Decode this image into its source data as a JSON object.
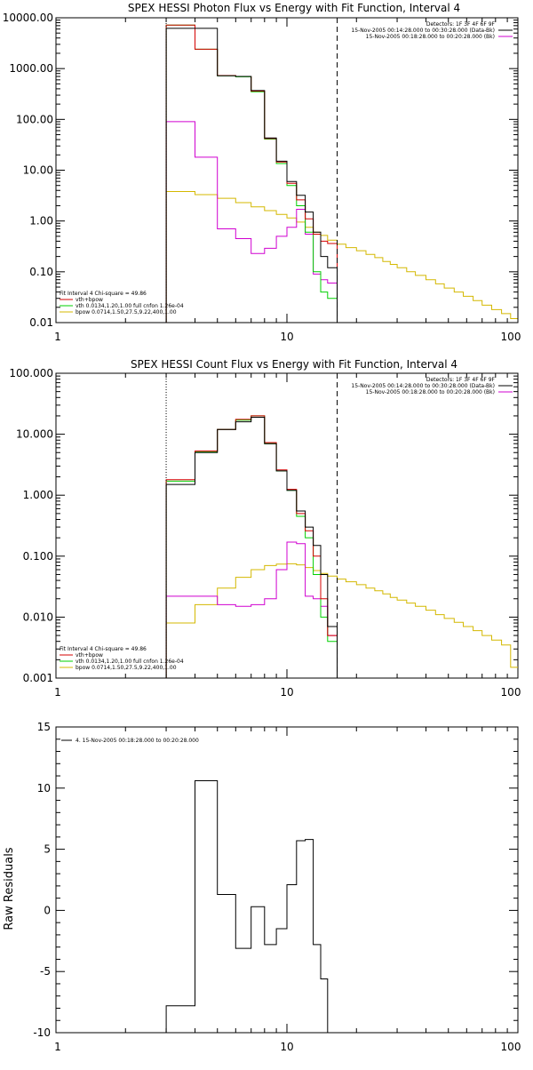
{
  "colors": {
    "data": "#000000",
    "total": "#d40000",
    "vth": "#00d000",
    "bpow": "#d4b800",
    "background": "#d000d0",
    "axis": "#000000"
  },
  "chart_data": [
    {
      "type": "line",
      "scale": "log-log",
      "title": "SPEX HESSI Photon Flux vs Energy with Fit Function, Interval 4",
      "xlim": [
        1,
        100
      ],
      "ylim": [
        0.01,
        10000
      ],
      "x_ticks": [
        "1",
        "10",
        "100"
      ],
      "y_ticks": [
        "0.01",
        "0.10",
        "1.00",
        "10.00",
        "100.00",
        "1000.00",
        "10000.00"
      ],
      "fit_range": [
        3,
        16.5
      ],
      "legend_right": [
        "Detectors: 1F 3F 4F 6F 9F",
        "15-Nov-2005 00:14:28.000 to 00:30:28.000 (Data-Bk)",
        "15-Nov-2005 00:18:28.000 to 00:20:28.000 (Bk)"
      ],
      "legend_left": [
        "Fit Interval 4   Chi-square = 49.86",
        "vth+bpow",
        "vth 0.0134,1.20,1.00  full cnfon 1.26e-04",
        "bpow 0.0714,1.50,27.5,9.22,400,1.00"
      ],
      "series": [
        {
          "key": "data",
          "legend": "15-Nov-2005 00:14:28.000 to 00:30:28.000 (Data-Bk)",
          "edges": [
            3,
            4,
            5,
            6,
            7,
            8,
            9,
            10,
            11,
            12,
            13,
            14,
            15,
            16.5
          ],
          "values": [
            6200,
            6200,
            720,
            700,
            370,
            43,
            15,
            6,
            3.2,
            1.5,
            0.6,
            0.2,
            0.12
          ]
        },
        {
          "key": "total",
          "legend": "vth+bpow",
          "edges": [
            3,
            4,
            5,
            6,
            7,
            8,
            9,
            10,
            11,
            12,
            13,
            14,
            15,
            16.5
          ],
          "values": [
            7200,
            2400,
            730,
            700,
            360,
            42,
            14.5,
            5.5,
            2.6,
            1.1,
            0.55,
            0.4,
            0.36
          ]
        },
        {
          "key": "vth",
          "legend": "vth 0.0134,1.20,1.00  full cnfon 1.26e-04",
          "edges": [
            3,
            4,
            5,
            6,
            7,
            8,
            9,
            10,
            11,
            12,
            13,
            14,
            15,
            16.5
          ],
          "values": [
            7200,
            2400,
            720,
            690,
            350,
            41,
            13.5,
            5,
            2,
            0.6,
            0.1,
            0.04,
            0.03
          ]
        },
        {
          "key": "bpow",
          "legend": "bpow 0.0714,1.50,27.5,9.22,400,1.00",
          "edges": [
            3,
            4,
            5,
            6,
            7,
            8,
            9,
            10,
            11,
            12,
            13,
            14,
            15,
            16.5,
            18,
            20,
            22,
            24,
            26,
            28,
            30,
            33,
            36,
            40,
            44,
            48,
            53,
            58,
            64,
            70,
            77,
            85,
            93,
            100
          ],
          "values": [
            3.8,
            3.3,
            2.8,
            2.3,
            1.9,
            1.6,
            1.35,
            1.15,
            0.95,
            0.75,
            0.6,
            0.52,
            0.42,
            0.35,
            0.3,
            0.26,
            0.22,
            0.19,
            0.16,
            0.14,
            0.12,
            0.1,
            0.085,
            0.07,
            0.058,
            0.048,
            0.04,
            0.033,
            0.027,
            0.022,
            0.018,
            0.015,
            0.012
          ]
        },
        {
          "key": "background",
          "legend": "15-Nov-2005 00:18:28.000 to 00:20:28.000 (Bk)",
          "edges": [
            3,
            4,
            5,
            6,
            7,
            8,
            9,
            10,
            11,
            12,
            13,
            14,
            15,
            16.5
          ],
          "values": [
            90,
            18,
            0.7,
            0.45,
            0.23,
            0.29,
            0.5,
            0.75,
            1.7,
            0.55,
            0.09,
            0.07,
            0.06
          ]
        }
      ]
    },
    {
      "type": "line",
      "scale": "log-log",
      "title": "SPEX HESSI Count Flux vs Energy with Fit Function, Interval 4",
      "xlim": [
        1,
        100
      ],
      "ylim": [
        0.001,
        100
      ],
      "x_ticks": [
        "1",
        "10",
        "100"
      ],
      "y_ticks": [
        "0.001",
        "0.010",
        "0.100",
        "1.000",
        "10.000",
        "100.000"
      ],
      "fit_range": [
        3,
        16.5
      ],
      "legend_right": [
        "Detectors: 1F 3F 4F 6F 9F",
        "15-Nov-2005 00:14:28.000 to 00:30:28.000 (Data-Bk)",
        "15-Nov-2005 00:18:28.000 to 00:20:28.000 (Bk)"
      ],
      "legend_left": [
        "Fit Interval 4   Chi-square = 49.86",
        "vth+bpow",
        "vth 0.0134,1.20,1.00  full cnfon 1.26e-04",
        "bpow 0.0714,1.50,27.5,9.22,400,1.00"
      ],
      "series": [
        {
          "key": "data",
          "legend": "15-Nov-2005 00:14:28.000 to 00:30:28.000 (Data-Bk)",
          "edges": [
            3,
            4,
            5,
            6,
            7,
            8,
            9,
            10,
            11,
            12,
            13,
            14,
            15,
            16.5
          ],
          "values": [
            1.5,
            5,
            12,
            16,
            19,
            7,
            2.5,
            1.2,
            0.55,
            0.3,
            0.15,
            0.05,
            0.007
          ]
        },
        {
          "key": "total",
          "legend": "vth+bpow",
          "edges": [
            3,
            4,
            5,
            6,
            7,
            8,
            9,
            10,
            11,
            12,
            13,
            14,
            15,
            16.5
          ],
          "values": [
            1.8,
            5.3,
            12,
            17.5,
            20,
            7.3,
            2.6,
            1.25,
            0.5,
            0.26,
            0.1,
            0.02,
            0.005
          ]
        },
        {
          "key": "vth",
          "legend": "vth 0.0134,1.20,1.00  full cnfon 1.26e-04",
          "edges": [
            3,
            4,
            5,
            6,
            7,
            8,
            9,
            10,
            11,
            12,
            13,
            14,
            15,
            16.5
          ],
          "values": [
            1.7,
            5.2,
            12,
            17,
            20,
            7,
            2.5,
            1.2,
            0.45,
            0.2,
            0.05,
            0.01,
            0.004
          ]
        },
        {
          "key": "bpow",
          "legend": "bpow 0.0714,1.50,27.5,9.22,400,1.00",
          "edges": [
            3,
            4,
            5,
            6,
            7,
            8,
            9,
            10,
            11,
            12,
            13,
            14,
            15,
            16.5,
            18,
            20,
            22,
            24,
            26,
            28,
            30,
            33,
            36,
            40,
            44,
            48,
            53,
            58,
            64,
            70,
            77,
            85,
            93,
            100
          ],
          "values": [
            0.008,
            0.016,
            0.03,
            0.045,
            0.06,
            0.07,
            0.074,
            0.075,
            0.072,
            0.065,
            0.058,
            0.052,
            0.047,
            0.042,
            0.038,
            0.034,
            0.03,
            0.027,
            0.024,
            0.021,
            0.019,
            0.017,
            0.015,
            0.013,
            0.011,
            0.0095,
            0.0082,
            0.007,
            0.006,
            0.005,
            0.0042,
            0.0035,
            0.0015
          ]
        },
        {
          "key": "background",
          "legend": "15-Nov-2005 00:18:28.000 to 00:20:28.000 (Bk)",
          "edges": [
            3,
            4,
            5,
            6,
            7,
            8,
            9,
            10,
            11,
            12,
            13,
            14,
            15,
            16.5
          ],
          "values": [
            0.022,
            0.022,
            0.016,
            0.015,
            0.016,
            0.02,
            0.06,
            0.17,
            0.16,
            0.022,
            0.02,
            0.015,
            0.005
          ]
        }
      ]
    },
    {
      "type": "line",
      "scale": "log-x",
      "title": "",
      "ylabel": "Raw Residuals",
      "xlim": [
        1,
        100
      ],
      "ylim": [
        -10,
        15
      ],
      "x_ticks": [
        "1",
        "10",
        "100"
      ],
      "y_ticks": [
        "-10",
        "-5",
        "0",
        "5",
        "10",
        "15"
      ],
      "legend_left": [
        "4. 15-Nov-2005 00:18:28.000 to 00:20:28.000"
      ],
      "series": [
        {
          "key": "data",
          "legend": "4. 15-Nov-2005 00:18:28.000 to 00:20:28.000",
          "edges": [
            3,
            4,
            5,
            6,
            7,
            8,
            9,
            10,
            11,
            12,
            13,
            14,
            15,
            16.5
          ],
          "values": [
            -7.8,
            10.6,
            1.3,
            -3.1,
            0.3,
            -2.8,
            -1.5,
            2.1,
            5.7,
            5.8,
            -2.8,
            -5.6,
            -10
          ]
        }
      ]
    }
  ]
}
